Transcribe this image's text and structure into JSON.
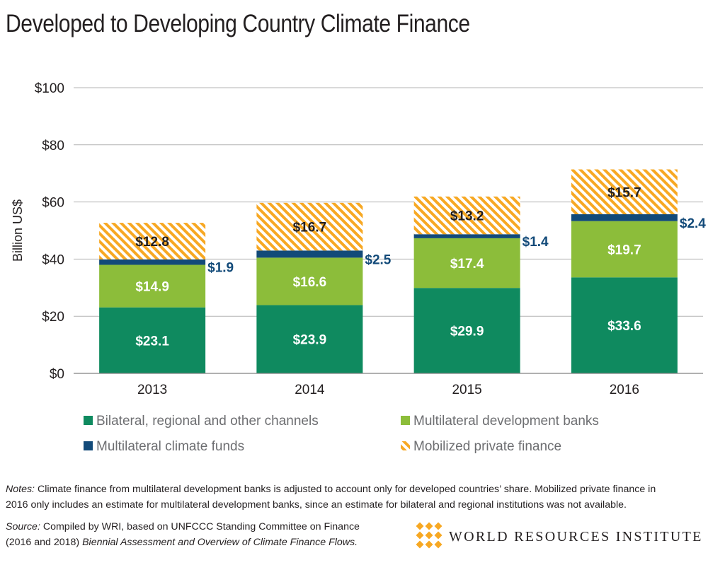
{
  "chart_data": {
    "type": "bar",
    "stacked": true,
    "title": "Developed to Developing Country Climate Finance",
    "ylabel": "Billion US$",
    "ylim": [
      0,
      100
    ],
    "yticks": [
      0,
      20,
      40,
      60,
      80,
      100
    ],
    "ytick_labels": [
      "$0",
      "$20",
      "$40",
      "$60",
      "$80",
      "$100"
    ],
    "grid": true,
    "legend_position": "bottom",
    "categories": [
      "2013",
      "2014",
      "2015",
      "2016"
    ],
    "series": [
      {
        "name": "Bilateral, regional and other channels",
        "values": [
          23.1,
          23.9,
          29.9,
          33.6
        ],
        "labels": [
          "$23.1",
          "$23.9",
          "$29.9",
          "$33.6"
        ],
        "color": "#0f8a5f",
        "label_color": "#ffffff",
        "label_position": "inside"
      },
      {
        "name": "Multilateral development banks",
        "values": [
          14.9,
          16.6,
          17.4,
          19.7
        ],
        "labels": [
          "$14.9",
          "$16.6",
          "$17.4",
          "$19.7"
        ],
        "color": "#8cbd3a",
        "label_color": "#ffffff",
        "label_position": "inside"
      },
      {
        "name": "Multilateral climate funds",
        "values": [
          1.9,
          2.5,
          1.4,
          2.4
        ],
        "labels": [
          "$1.9",
          "$2.5",
          "$1.4",
          "$2.4"
        ],
        "color": "#124a79",
        "label_color": "#124a79",
        "label_position": "outside-right"
      },
      {
        "name": "Mobilized private finance",
        "values": [
          12.8,
          16.7,
          13.2,
          15.7
        ],
        "labels": [
          "$12.8",
          "$16.7",
          "$13.2",
          "$15.7"
        ],
        "color": "#f7a823",
        "pattern": "diagonal-hatch",
        "label_color": "#231f20",
        "label_position": "inside"
      }
    ]
  },
  "notes": {
    "label": "Notes:",
    "line1": " Climate finance from multilateral development banks is adjusted to account only for developed countries’ share. Mobilized private finance in",
    "line2": "2016 only includes an estimate for multilateral development banks, since an estimate for bilateral and regional institutions was not available."
  },
  "source": {
    "label": "Source:",
    "line1": " Compiled by WRI, based on UNFCCC Standing Committee on Finance",
    "line2_plain": "(2016 and 2018) ",
    "line2_italic": "Biennial Assessment and Overview of Climate Finance Flows."
  },
  "logo": {
    "text": "WORLD RESOURCES INSTITUTE",
    "icon": "wri-diamond-grid-icon",
    "color": "#f7a823"
  }
}
